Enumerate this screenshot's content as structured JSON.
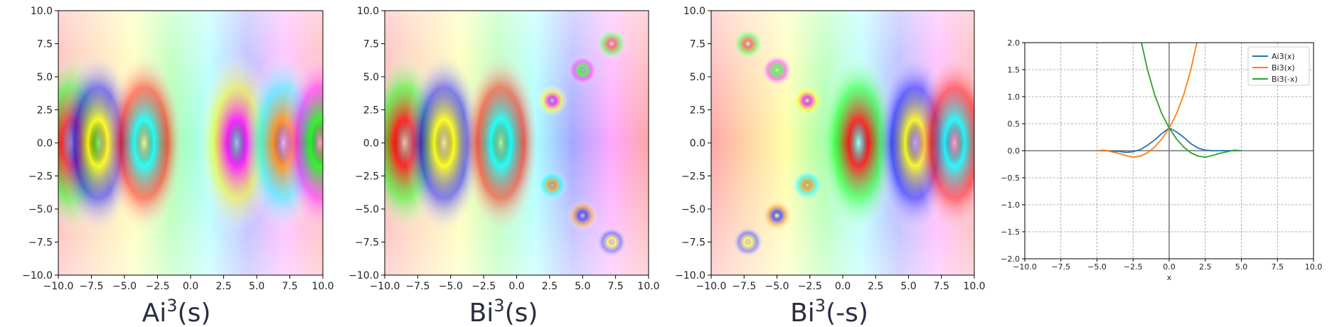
{
  "figure": {
    "panels": [
      "Ai^3(s)",
      "Bi^3(s)",
      "Bi^3(-s)"
    ]
  },
  "captions": [
    {
      "base": "Ai",
      "sup": "3",
      "arg": "(s)"
    },
    {
      "base": "Bi",
      "sup": "3",
      "arg": "(s)"
    },
    {
      "base": "Bi",
      "sup": "3",
      "arg": "(-s)"
    }
  ],
  "chart_data": [
    {
      "type": "heatmap",
      "title": "Ai³(s)",
      "function": "Ai^3(s) domain coloring (hue = argument, lightness = modulus)",
      "xlim": [
        -10,
        10
      ],
      "ylim": [
        -10,
        10
      ],
      "xticks": [
        "−10.0",
        "−7.5",
        "−5.0",
        "−2.5",
        "0.0",
        "2.5",
        "5.0",
        "7.5",
        "10.0"
      ],
      "yticks": [
        "10.0",
        "7.5",
        "5.0",
        "2.5",
        "0.0",
        "−2.5",
        "−5.0",
        "−7.5",
        "−10.0"
      ],
      "zeros": [
        [
          -9.0,
          0
        ],
        [
          -7.0,
          0
        ],
        [
          -3.5,
          0
        ],
        [
          3.5,
          0
        ],
        [
          7.0,
          0
        ],
        [
          9.8,
          0
        ]
      ]
    },
    {
      "type": "heatmap",
      "title": "Bi³(s)",
      "function": "Bi^3(s) domain coloring",
      "xlim": [
        -10,
        10
      ],
      "ylim": [
        -10,
        10
      ],
      "xticks": [
        "−10.0",
        "−7.5",
        "−5.0",
        "−2.5",
        "0.0",
        "2.5",
        "5.0",
        "7.5",
        "10.0"
      ],
      "yticks": [
        "10.0",
        "7.5",
        "5.0",
        "2.5",
        "0.0",
        "−2.5",
        "−5.0",
        "−7.5",
        "−10.0"
      ],
      "zeros": [
        [
          -8.5,
          0
        ],
        [
          -5.5,
          0
        ],
        [
          -1.2,
          0
        ],
        [
          2.7,
          3.2
        ],
        [
          2.7,
          -3.2
        ],
        [
          5.0,
          5.5
        ],
        [
          5.0,
          -5.5
        ],
        [
          7.2,
          7.5
        ],
        [
          7.2,
          -7.5
        ]
      ]
    },
    {
      "type": "heatmap",
      "title": "Bi³(-s)",
      "function": "Bi^3(-s) domain coloring",
      "xlim": [
        -10,
        10
      ],
      "ylim": [
        -10,
        10
      ],
      "xticks": [
        "−10.0",
        "−7.5",
        "−5.0",
        "−2.5",
        "0.0",
        "2.5",
        "5.0",
        "7.5",
        "10.0"
      ],
      "yticks": [
        "10.0",
        "7.5",
        "5.0",
        "2.5",
        "0.0",
        "−2.5",
        "−5.0",
        "−7.5",
        "−10.0"
      ],
      "zeros": [
        [
          1.2,
          0
        ],
        [
          5.5,
          0
        ],
        [
          8.5,
          0
        ],
        [
          -2.7,
          3.2
        ],
        [
          -2.7,
          -3.2
        ],
        [
          -5.0,
          5.5
        ],
        [
          -5.0,
          -5.5
        ],
        [
          -7.2,
          7.5
        ],
        [
          -7.2,
          -7.5
        ]
      ]
    },
    {
      "type": "line",
      "xlabel": "x",
      "ylabel": "",
      "xlim": [
        -10,
        10
      ],
      "ylim": [
        -2,
        2
      ],
      "grid": true,
      "legend": "top-right",
      "xticks": [
        "−10.0",
        "−7.5",
        "−5.0",
        "−2.5",
        "0.0",
        "2.5",
        "5.0",
        "7.5",
        "10.0"
      ],
      "yticks": [
        "2.0",
        "1.5",
        "1.0",
        "0.5",
        "0.0",
        "−0.5",
        "−1.0",
        "−1.5",
        "−2.0"
      ],
      "series": [
        {
          "name": "Ai3(x)",
          "color": "#1f77b4",
          "x": [
            -5,
            -4.5,
            -4,
            -3.5,
            -3,
            -2.5,
            -2,
            -1.5,
            -1,
            -0.5,
            0,
            0.5,
            1,
            1.5,
            2,
            2.5,
            3,
            3.5,
            4,
            4.5,
            5
          ],
          "y": [
            -0.0,
            0.0,
            -0.01,
            -0.01,
            -0.03,
            -0.02,
            0.02,
            0.1,
            0.2,
            0.32,
            0.42,
            0.35,
            0.25,
            0.13,
            0.05,
            0.01,
            0.0,
            0.0,
            0.0,
            0.0,
            0.0
          ]
        },
        {
          "name": "Bi3(x)",
          "color": "#ff7f0e",
          "x": [
            -5,
            -4.5,
            -4,
            -3.5,
            -3,
            -2.5,
            -2,
            -1.5,
            -1,
            -0.5,
            0,
            0.5,
            1,
            1.5,
            2
          ],
          "y": [
            0.0,
            0.01,
            -0.02,
            -0.05,
            -0.09,
            -0.12,
            -0.1,
            -0.04,
            0.07,
            0.22,
            0.42,
            0.68,
            1.03,
            1.5,
            2.1
          ]
        },
        {
          "name": "Bi3(-x)",
          "color": "#2ca02c",
          "x": [
            -2,
            -1.5,
            -1,
            -0.5,
            0,
            0.5,
            1,
            1.5,
            2,
            2.5,
            3,
            3.5,
            4,
            4.5,
            5
          ],
          "y": [
            2.1,
            1.5,
            1.03,
            0.68,
            0.42,
            0.22,
            0.07,
            -0.04,
            -0.1,
            -0.12,
            -0.09,
            -0.05,
            -0.02,
            0.01,
            0.0
          ]
        }
      ]
    }
  ]
}
